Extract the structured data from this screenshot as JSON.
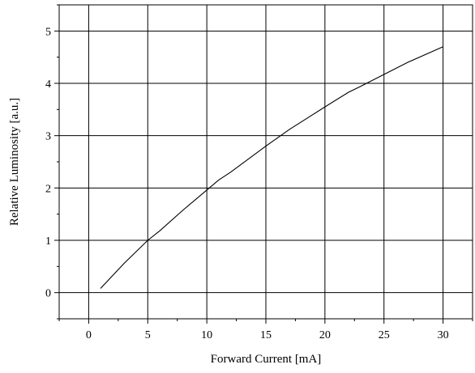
{
  "chart_data": {
    "type": "line",
    "xlabel": "Forward Current [mA]",
    "ylabel": "Relative Luminosity [a.u.]",
    "xlim": [
      -2.5,
      32.5
    ],
    "ylim": [
      -0.5,
      5.5
    ],
    "grid": true,
    "x_ticks": [
      "0",
      "5",
      "10",
      "15",
      "20",
      "25",
      "30"
    ],
    "y_ticks": [
      "0",
      "1",
      "2",
      "3",
      "4",
      "5"
    ],
    "series": [
      {
        "color": "#000000",
        "x": [
          1,
          3,
          5,
          6,
          8,
          10,
          11,
          12,
          15,
          17,
          20,
          22,
          23,
          25,
          27,
          30
        ],
        "y": [
          0.08,
          0.56,
          1.0,
          1.18,
          1.58,
          1.96,
          2.15,
          2.3,
          2.8,
          3.12,
          3.55,
          3.83,
          3.94,
          4.17,
          4.4,
          4.7
        ]
      }
    ]
  }
}
